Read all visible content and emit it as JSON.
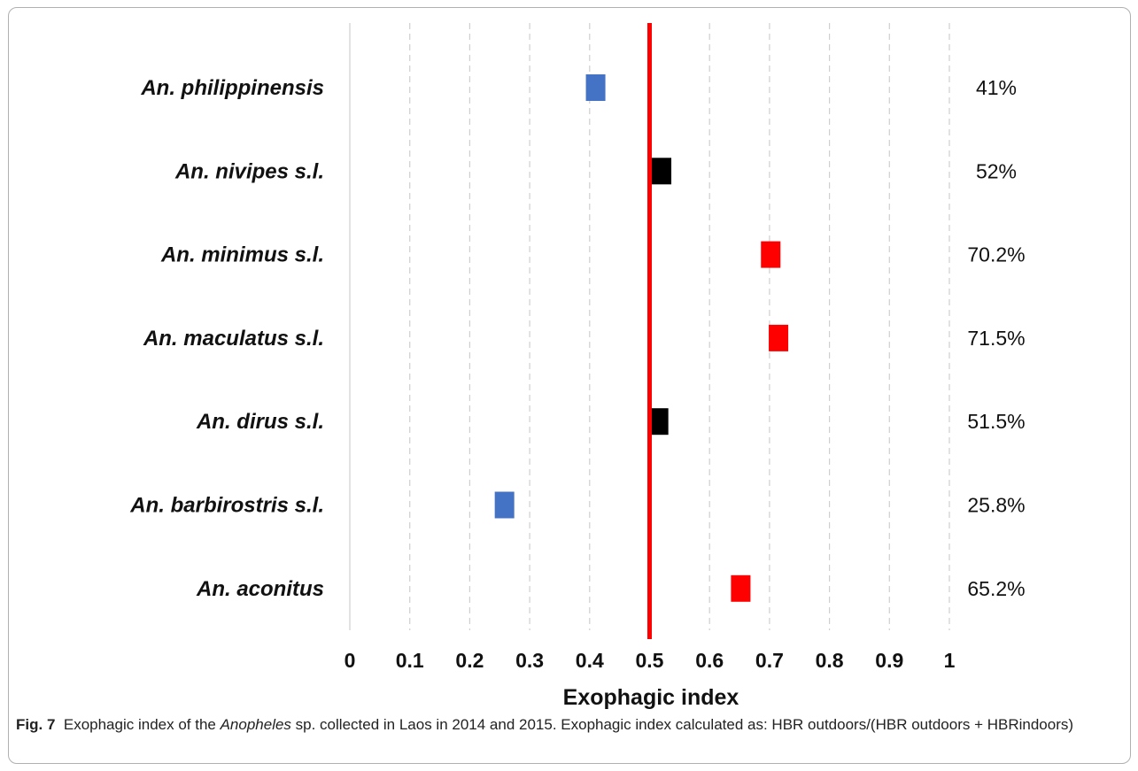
{
  "chart_data": {
    "type": "bar",
    "xlabel": "Exophagic index",
    "xlim": [
      0,
      1
    ],
    "x_ticks": [
      "0",
      "0.1",
      "0.2",
      "0.3",
      "0.4",
      "0.5",
      "0.6",
      "0.7",
      "0.8",
      "0.9",
      "1"
    ],
    "grid": "vertical dashed",
    "reference_line": {
      "value": 0.5,
      "color": "#ff0000"
    },
    "series": [
      {
        "species": "An. philippinensis",
        "value": 0.41,
        "label": "41%",
        "color": "#4472c4"
      },
      {
        "species": "An. nivipes s.l.",
        "value": 0.52,
        "label": "52%",
        "color": "#000000"
      },
      {
        "species": "An. minimus s.l.",
        "value": 0.702,
        "label": "70.2%",
        "color": "#ff0000"
      },
      {
        "species": "An. maculatus s.l.",
        "value": 0.715,
        "label": "71.5%",
        "color": "#ff0000"
      },
      {
        "species": "An. dirus s.l.",
        "value": 0.515,
        "label": "51.5%",
        "color": "#000000"
      },
      {
        "species": "An. barbirostris s.l.",
        "value": 0.258,
        "label": "25.8%",
        "color": "#4472c4"
      },
      {
        "species": "An. aconitus",
        "value": 0.652,
        "label": "65.2%",
        "color": "#ff0000"
      }
    ]
  },
  "caption": {
    "fig_label": "Fig. 7",
    "part1": "Exophagic index of the ",
    "italic": "Anopheles",
    "part2": " sp. collected in Laos in 2014 and 2015. Exophagic index calculated as: HBR outdoors/(HBR outdoors + HBRindoors)"
  }
}
